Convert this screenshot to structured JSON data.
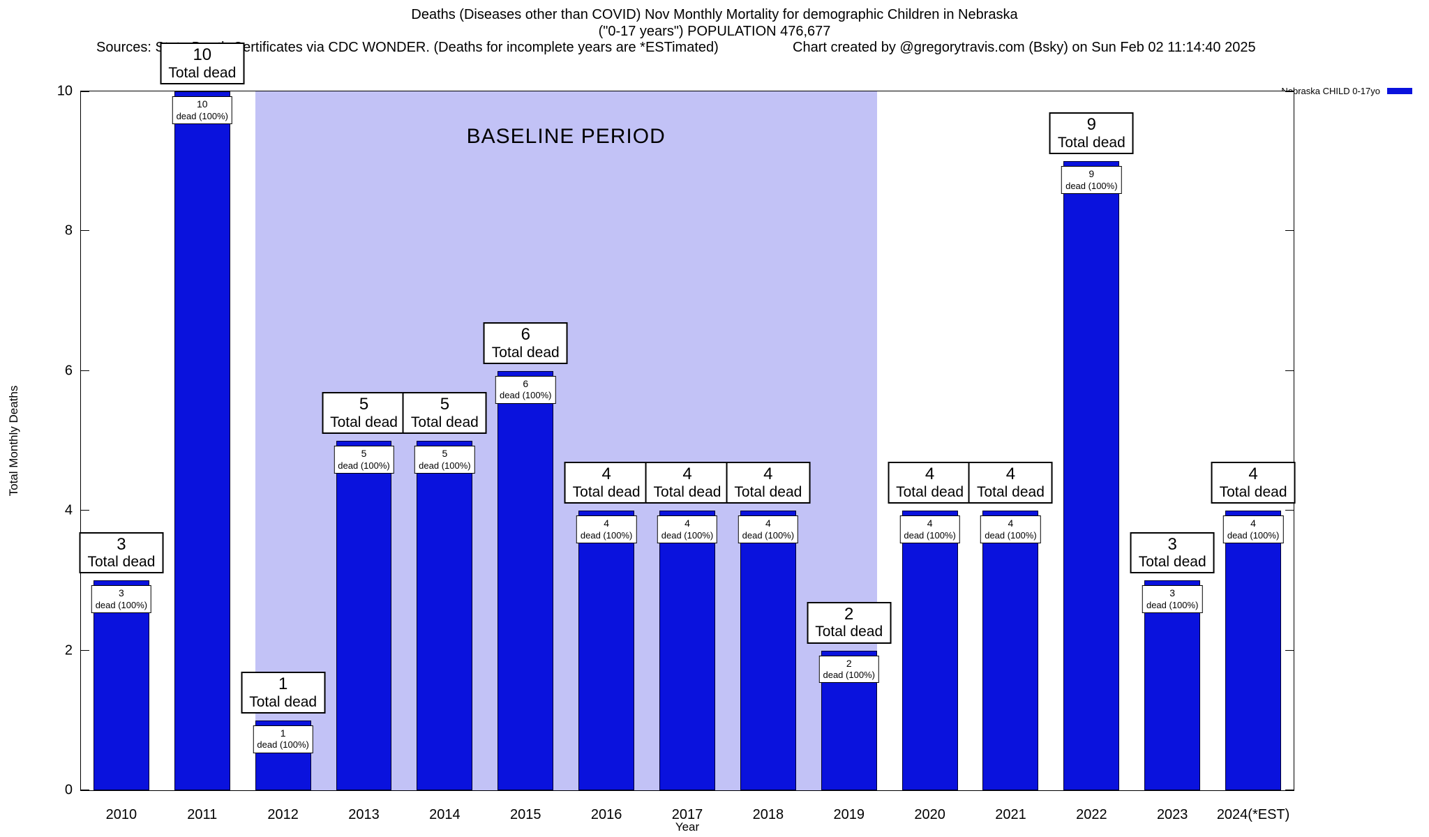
{
  "header": {
    "title_line1": "Deaths (Diseases other than COVID) Nov Monthly Mortality for demographic Children in Nebraska",
    "title_line2": "(\"0-17 years\") POPULATION 476,677",
    "sources": "Sources: State Death Certificates via CDC WONDER. (Deaths for incomplete years are *ESTimated)",
    "credit": "Chart created by @gregorytravis.com (Bsky) on Sun Feb 02 11:14:40 2025"
  },
  "legend": {
    "label": "Nebraska CHILD 0-17yo",
    "swatch_color": "#0a12dd"
  },
  "labels": {
    "total_dead": "Total dead",
    "dead_pct": "dead (100%)"
  },
  "chart_data": {
    "type": "bar",
    "title": "Deaths (Diseases other than COVID) Nov Monthly Mortality for demographic Children in Nebraska (\"0-17 years\") POPULATION 476,677",
    "xlabel": "Year",
    "ylabel": "Total Monthly Deaths",
    "categories": [
      "2010",
      "2011",
      "2012",
      "2013",
      "2014",
      "2015",
      "2016",
      "2017",
      "2018",
      "2019",
      "2020",
      "2021",
      "2022",
      "2023",
      "2024(*EST)"
    ],
    "values": [
      3,
      10,
      1,
      5,
      5,
      6,
      4,
      4,
      4,
      2,
      4,
      4,
      9,
      3,
      4
    ],
    "bar_value_label_top": "Total dead",
    "bar_value_label_inner": "dead (100%)",
    "series": [
      {
        "name": "Nebraska CHILD 0-17yo",
        "values": [
          3,
          10,
          1,
          5,
          5,
          6,
          4,
          4,
          4,
          2,
          4,
          4,
          9,
          3,
          4
        ]
      }
    ],
    "ylim": [
      0,
      10
    ],
    "yticks": [
      0,
      2,
      4,
      6,
      8,
      10
    ],
    "grid": false,
    "legend_position": "top-right",
    "bar_color": "#0a12dd",
    "annotations": {
      "baseline_label": "BASELINE PERIOD",
      "baseline_start_category": "2012",
      "baseline_end_category": "2019",
      "baseline_color": "#c2c2f6"
    }
  }
}
